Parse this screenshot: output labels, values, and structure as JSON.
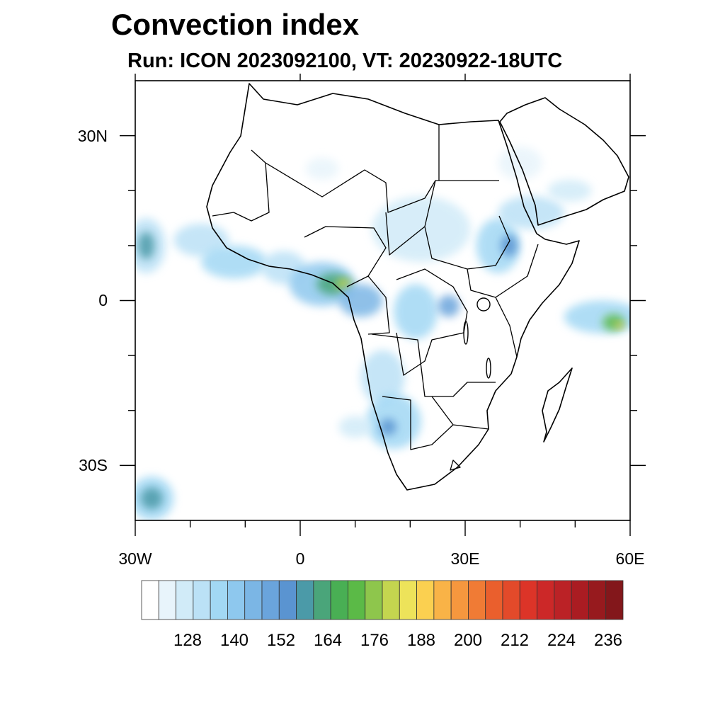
{
  "title": "Convection index",
  "subtitle": "Run: ICON 2023092100,  VT: 20230922-18UTC",
  "map": {
    "lon_range": [
      -30,
      60
    ],
    "lat_range": [
      -40,
      40
    ],
    "x_ticks": [
      {
        "lon": -30,
        "label": "30W"
      },
      {
        "lon": 0,
        "label": "0"
      },
      {
        "lon": 30,
        "label": "30E"
      },
      {
        "lon": 60,
        "label": "60E"
      }
    ],
    "y_ticks": [
      {
        "lat": 30,
        "label": "30N"
      },
      {
        "lat": 0,
        "label": "0"
      },
      {
        "lat": -30,
        "label": "30S"
      }
    ],
    "minor_lon_ticks": [
      -20,
      -10,
      10,
      20,
      40,
      50
    ],
    "minor_lat_ticks": [
      20,
      10,
      -10,
      -20
    ],
    "convection_blobs": [
      {
        "lon": -28,
        "lat": 10,
        "rlon": 3.5,
        "rlat": 5,
        "level": 3
      },
      {
        "lon": -28,
        "lat": 10,
        "rlon": 1.5,
        "rlat": 2.5,
        "level": 9
      },
      {
        "lon": -18,
        "lat": 11,
        "rlon": 5,
        "rlat": 3,
        "level": 3
      },
      {
        "lon": -12,
        "lat": 7,
        "rlon": 6,
        "rlat": 3,
        "level": 4
      },
      {
        "lon": -3,
        "lat": 6,
        "rlon": 4,
        "rlat": 3,
        "level": 3
      },
      {
        "lon": 4,
        "lat": 3,
        "rlon": 6,
        "rlat": 4,
        "level": 5
      },
      {
        "lon": 6,
        "lat": 3,
        "rlon": 3,
        "rlat": 2,
        "level": 10
      },
      {
        "lon": 8,
        "lat": 3,
        "rlon": 1.5,
        "rlat": 1,
        "level": 14
      },
      {
        "lon": 11,
        "lat": 0,
        "rlon": 4,
        "rlat": 3,
        "level": 6
      },
      {
        "lon": 21,
        "lat": -2,
        "rlon": 4,
        "rlat": 5,
        "level": 4
      },
      {
        "lon": 27,
        "lat": -1,
        "rlon": 2,
        "rlat": 2,
        "level": 7
      },
      {
        "lon": 22,
        "lat": 13,
        "rlon": 9,
        "rlat": 6,
        "level": 2
      },
      {
        "lon": 36,
        "lat": 10,
        "rlon": 4,
        "rlat": 5,
        "level": 4
      },
      {
        "lon": 38,
        "lat": 10,
        "rlon": 1.5,
        "rlat": 2,
        "level": 8
      },
      {
        "lon": 42,
        "lat": 16,
        "rlon": 6,
        "rlat": 3,
        "level": 3
      },
      {
        "lon": 55,
        "lat": -3,
        "rlon": 7,
        "rlat": 3,
        "level": 4
      },
      {
        "lon": 57,
        "lat": -4,
        "rlon": 2,
        "rlat": 1.5,
        "level": 12
      },
      {
        "lon": 58,
        "lat": -4.5,
        "rlon": 0.8,
        "rlat": 0.6,
        "level": 16
      },
      {
        "lon": 15,
        "lat": -14,
        "rlon": 4,
        "rlat": 5,
        "level": 3
      },
      {
        "lon": 17,
        "lat": -22,
        "rlon": 5,
        "rlat": 5,
        "level": 4
      },
      {
        "lon": 16,
        "lat": -23,
        "rlon": 1.5,
        "rlat": 1.5,
        "level": 8
      },
      {
        "lon": 10,
        "lat": -23,
        "rlon": 3,
        "rlat": 2,
        "level": 2
      },
      {
        "lon": -27,
        "lat": -36,
        "rlon": 4,
        "rlat": 4,
        "level": 4
      },
      {
        "lon": -27,
        "lat": -36,
        "rlon": 2,
        "rlat": 2,
        "level": 9
      },
      {
        "lon": 4,
        "lat": 24,
        "rlon": 3,
        "rlat": 2,
        "level": 1
      },
      {
        "lon": 40,
        "lat": 25,
        "rlon": 4,
        "rlat": 3,
        "level": 1
      },
      {
        "lon": 49,
        "lat": 20,
        "rlon": 4,
        "rlat": 2,
        "level": 2
      }
    ]
  },
  "colorbar": {
    "colors": [
      "#ffffff",
      "#e8f4fb",
      "#d1ebf8",
      "#bbe1f6",
      "#a2d8f4",
      "#8ec8ee",
      "#7bb6e5",
      "#6aa4dc",
      "#5a94d1",
      "#4b9aa8",
      "#4aa57a",
      "#49af54",
      "#5bba47",
      "#8ec64c",
      "#c4d54f",
      "#ede35a",
      "#fbd050",
      "#f9b347",
      "#f6973e",
      "#f07b35",
      "#ea5f2d",
      "#e34a2a",
      "#dc3428",
      "#cc2828",
      "#bb2226",
      "#aa1c22",
      "#971a1e",
      "#83171b"
    ],
    "labels": [
      "128",
      "140",
      "152",
      "164",
      "176",
      "188",
      "200",
      "212",
      "224",
      "236"
    ]
  }
}
